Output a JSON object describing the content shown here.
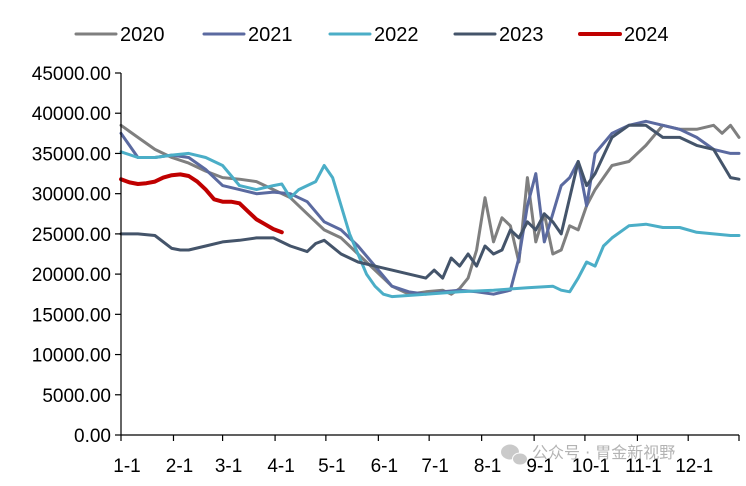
{
  "chart_data": {
    "type": "line",
    "title": "",
    "xlabel": "",
    "ylabel": "",
    "ylim": [
      0,
      45000
    ],
    "xlim": [
      0,
      365
    ],
    "y_ticks": [
      0,
      5000,
      10000,
      15000,
      20000,
      25000,
      30000,
      35000,
      40000,
      45000
    ],
    "y_tick_labels": [
      "0.00",
      "5000.00",
      "10000.00",
      "15000.00",
      "20000.00",
      "25000.00",
      "30000.00",
      "35000.00",
      "40000.00",
      "45000.00"
    ],
    "x_ticks": [
      0,
      31,
      60,
      91,
      121,
      152,
      182,
      213,
      244,
      274,
      305,
      335
    ],
    "x_tick_labels": [
      "1-1",
      "2-1",
      "3-1",
      "4-1",
      "5-1",
      "6-1",
      "7-1",
      "8-1",
      "9-1",
      "10-1",
      "11-1",
      "12-1"
    ],
    "legend_position": "top",
    "grid": false,
    "series": [
      {
        "name": "2020",
        "color": "#7f7f7f",
        "x": [
          0,
          10,
          20,
          30,
          40,
          50,
          60,
          70,
          80,
          90,
          100,
          110,
          120,
          130,
          140,
          150,
          160,
          170,
          180,
          190,
          195,
          200,
          205,
          210,
          215,
          220,
          225,
          230,
          235,
          240,
          245,
          250,
          255,
          260,
          265,
          270,
          275,
          280,
          285,
          290,
          300,
          310,
          320,
          330,
          340,
          350,
          355,
          360,
          365
        ],
        "y": [
          38500,
          37000,
          35500,
          34500,
          33800,
          32800,
          32000,
          31800,
          31500,
          30500,
          29500,
          27500,
          25500,
          24500,
          22500,
          20500,
          18500,
          17500,
          17800,
          18000,
          17500,
          18200,
          19500,
          23000,
          29500,
          24000,
          27000,
          26000,
          21500,
          32000,
          24000,
          27500,
          22500,
          23000,
          26000,
          25500,
          28500,
          30500,
          32000,
          33500,
          34000,
          36000,
          38500,
          38000,
          38000,
          38500,
          37500,
          38500,
          37000
        ]
      },
      {
        "name": "2021",
        "color": "#5b6aa0",
        "x": [
          0,
          10,
          20,
          30,
          40,
          50,
          60,
          70,
          80,
          90,
          100,
          110,
          120,
          130,
          140,
          150,
          160,
          170,
          180,
          190,
          200,
          210,
          220,
          230,
          235,
          240,
          245,
          250,
          255,
          260,
          265,
          270,
          275,
          280,
          290,
          300,
          310,
          320,
          330,
          340,
          350,
          360,
          365
        ],
        "y": [
          37500,
          34500,
          34500,
          34800,
          34500,
          33000,
          31000,
          30500,
          30000,
          30200,
          30000,
          29000,
          26500,
          25500,
          23500,
          21000,
          18500,
          17800,
          17500,
          17800,
          18000,
          17800,
          17500,
          18000,
          22000,
          28500,
          32500,
          24000,
          27500,
          31000,
          32000,
          34000,
          28500,
          35000,
          37500,
          38500,
          39000,
          38500,
          38000,
          37000,
          35500,
          35000,
          35000
        ]
      },
      {
        "name": "2022",
        "color": "#4baec7",
        "x": [
          0,
          10,
          20,
          30,
          40,
          50,
          60,
          70,
          80,
          90,
          95,
          100,
          105,
          110,
          115,
          120,
          125,
          130,
          135,
          140,
          145,
          150,
          155,
          160,
          180,
          200,
          220,
          240,
          255,
          260,
          265,
          270,
          275,
          280,
          285,
          290,
          300,
          310,
          320,
          330,
          340,
          350,
          360,
          365
        ],
        "y": [
          35200,
          34500,
          34500,
          34800,
          35000,
          34500,
          33500,
          31000,
          30500,
          31000,
          31200,
          29500,
          30500,
          31000,
          31500,
          33500,
          32000,
          28500,
          25000,
          22500,
          20000,
          18500,
          17500,
          17200,
          17500,
          17800,
          18000,
          18300,
          18500,
          18000,
          17800,
          19500,
          21500,
          21000,
          23500,
          24500,
          26000,
          26200,
          25800,
          25800,
          25200,
          25000,
          24800,
          24800
        ]
      },
      {
        "name": "2023",
        "color": "#44546a",
        "x": [
          0,
          10,
          20,
          30,
          35,
          40,
          50,
          60,
          70,
          80,
          90,
          100,
          110,
          115,
          120,
          130,
          140,
          150,
          160,
          170,
          180,
          185,
          190,
          195,
          200,
          205,
          210,
          215,
          220,
          225,
          230,
          235,
          240,
          245,
          250,
          255,
          260,
          265,
          270,
          275,
          280,
          290,
          300,
          310,
          320,
          330,
          340,
          350,
          360,
          365
        ],
        "y": [
          25000,
          25000,
          24800,
          23200,
          23000,
          23000,
          23500,
          24000,
          24200,
          24500,
          24500,
          23500,
          22800,
          23800,
          24200,
          22500,
          21500,
          21000,
          20500,
          20000,
          19500,
          20500,
          19500,
          22000,
          21000,
          22500,
          21000,
          23500,
          22500,
          23000,
          25500,
          24500,
          26500,
          25500,
          27500,
          26500,
          25000,
          29500,
          34000,
          31000,
          32500,
          37000,
          38500,
          38500,
          37000,
          37000,
          36000,
          35500,
          32000,
          31800
        ]
      },
      {
        "name": "2024",
        "color": "#c00000",
        "x": [
          0,
          5,
          10,
          15,
          20,
          25,
          30,
          35,
          40,
          45,
          50,
          55,
          60,
          65,
          70,
          75,
          80,
          85,
          90,
          95
        ],
        "y": [
          31800,
          31400,
          31200,
          31300,
          31500,
          32000,
          32300,
          32400,
          32200,
          31500,
          30500,
          29300,
          29000,
          29000,
          28800,
          27800,
          26800,
          26200,
          25600,
          25200
        ]
      }
    ]
  },
  "watermark": {
    "icon": "wechat-icon",
    "text": "公众号 · 胃金新视野"
  }
}
